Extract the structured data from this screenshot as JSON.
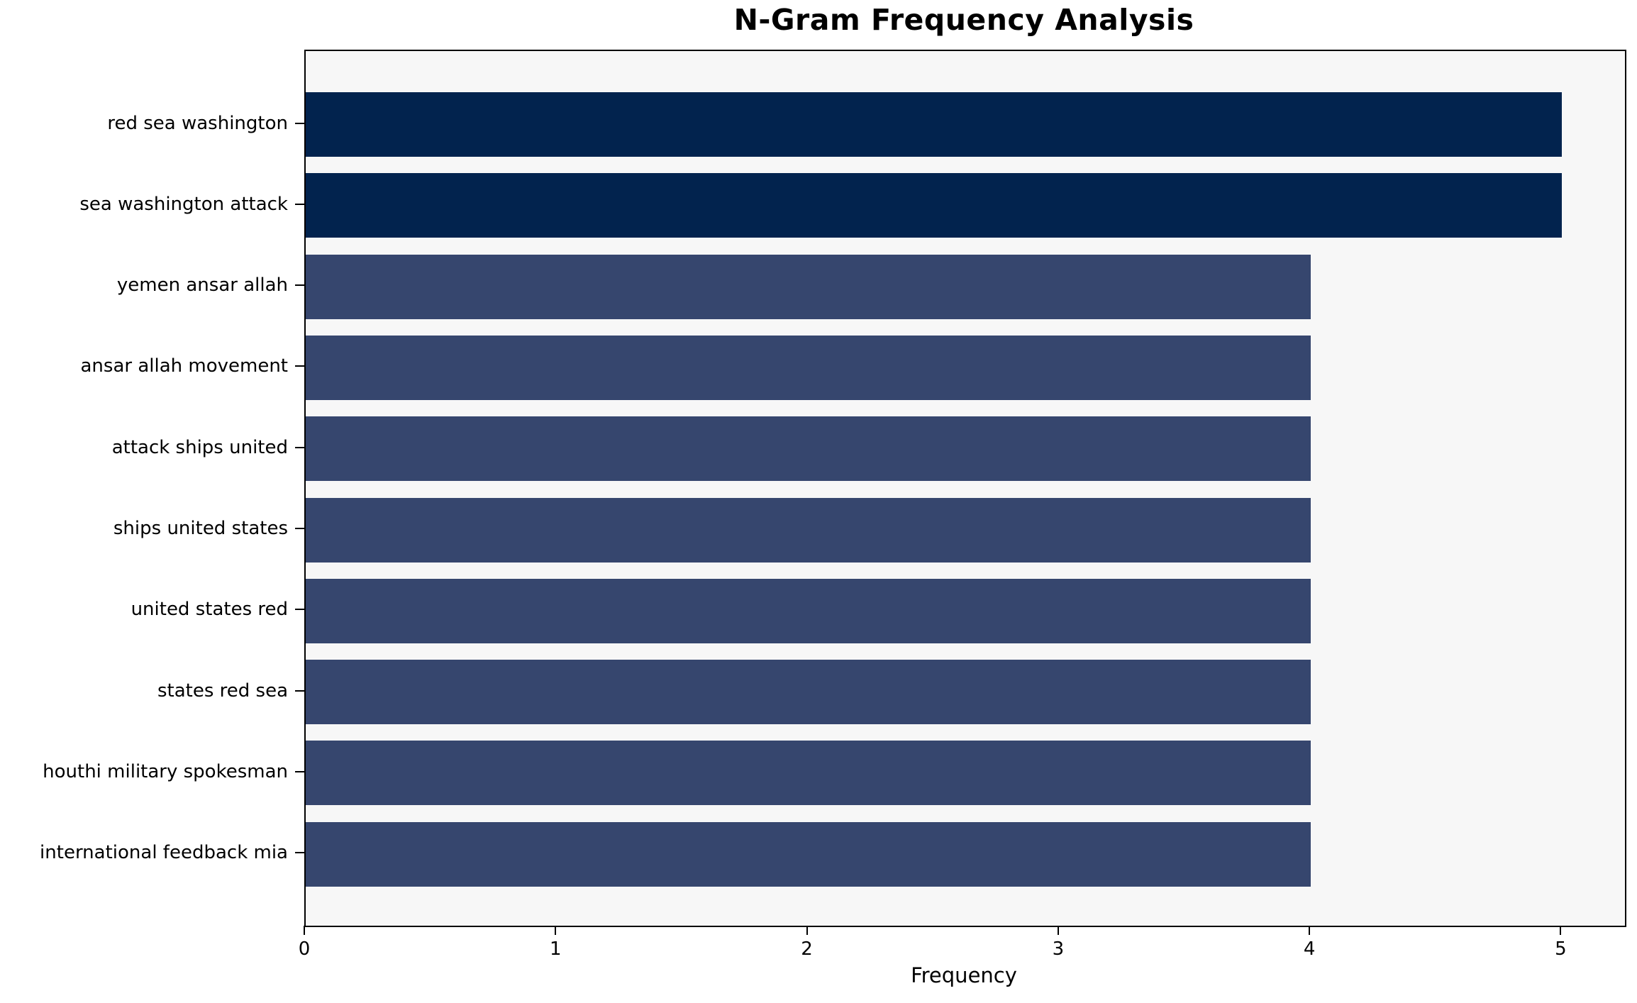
{
  "chart_data": {
    "type": "bar",
    "orientation": "horizontal",
    "title": "N-Gram Frequency Analysis",
    "xlabel": "Frequency",
    "ylabel": "",
    "categories": [
      "red sea washington",
      "sea washington attack",
      "yemen ansar allah",
      "ansar allah movement",
      "attack ships united",
      "ships united states",
      "united states red",
      "states red sea",
      "houthi military spokesman",
      "international feedback mia"
    ],
    "values": [
      5,
      5,
      4,
      4,
      4,
      4,
      4,
      4,
      4,
      4
    ],
    "bar_colors": [
      "#02234E",
      "#02234E",
      "#36466E",
      "#36466E",
      "#36466E",
      "#36466E",
      "#36466E",
      "#36466E",
      "#36466E",
      "#36466E"
    ],
    "x_ticks": [
      "0",
      "1",
      "2",
      "3",
      "4",
      "5"
    ],
    "x_tick_values": [
      0,
      1,
      2,
      3,
      4,
      5
    ],
    "xlim": [
      0,
      5.25
    ],
    "grid": false,
    "legend": null,
    "plot_bg_color": "#F7F7F7",
    "figure_bg_color": "#FFFFFF",
    "spine_color": "#000000"
  }
}
